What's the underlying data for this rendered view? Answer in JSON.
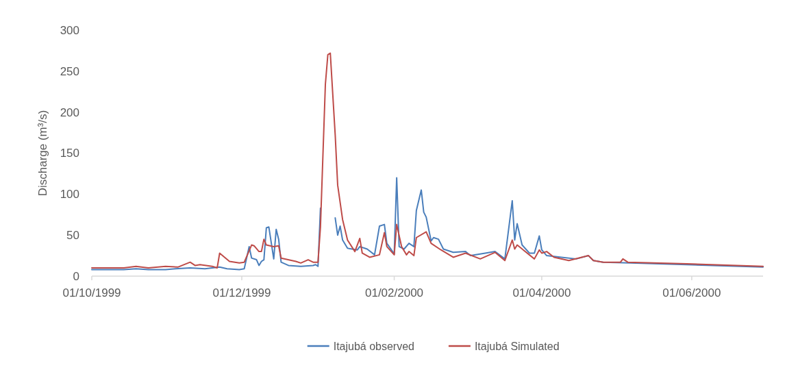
{
  "chart_data": {
    "type": "line",
    "ylabel": "Discharge (m³/s)",
    "xlim": [
      "1999-10-01",
      "2000-06-30"
    ],
    "xticks": [
      {
        "value": "1999-10-01",
        "label": "01/10/1999"
      },
      {
        "value": "1999-12-01",
        "label": "01/12/1999"
      },
      {
        "value": "2000-02-01",
        "label": "01/02/2000"
      },
      {
        "value": "2000-04-01",
        "label": "01/04/2000"
      },
      {
        "value": "2000-06-01",
        "label": "01/06/2000"
      }
    ],
    "ylim": [
      0,
      300
    ],
    "yticks": [
      0,
      50,
      100,
      150,
      200,
      250,
      300
    ],
    "grid": false,
    "legend": "bottom",
    "marker": "none",
    "line_style": "solid",
    "series": [
      {
        "name": "Itajubá observed",
        "color": "#4a7ebb",
        "x": [
          "1999-10-01",
          "1999-10-14",
          "1999-10-19",
          "1999-10-24",
          "1999-10-31",
          "1999-11-04",
          "1999-11-10",
          "1999-11-16",
          "1999-11-22",
          "1999-11-25",
          "1999-11-30",
          "1999-12-02",
          "1999-12-04",
          "1999-12-05",
          "1999-12-07",
          "1999-12-08",
          "1999-12-09",
          "1999-12-10",
          "1999-12-11",
          "1999-12-12",
          "1999-12-14",
          "1999-12-15",
          "1999-12-16",
          "1999-12-17",
          "1999-12-20",
          "1999-12-25",
          "1999-12-30",
          "1999-12-31",
          "2000-01-01",
          "2000-01-02",
          "2000-01-03",
          "2000-01-08",
          "2000-01-09",
          "2000-01-10",
          "2000-01-11",
          "2000-01-13",
          "2000-01-17",
          "2000-01-18",
          "2000-01-21",
          "2000-01-24",
          "2000-01-26",
          "2000-01-28",
          "2000-01-29",
          "2000-02-01",
          "2000-02-02",
          "2000-02-03",
          "2000-02-05",
          "2000-02-07",
          "2000-02-09",
          "2000-02-10",
          "2000-02-12",
          "2000-02-13",
          "2000-02-14",
          "2000-02-16",
          "2000-02-17",
          "2000-02-19",
          "2000-02-21",
          "2000-02-25",
          "2000-03-01",
          "2000-03-03",
          "2000-03-09",
          "2000-03-13",
          "2000-03-17",
          "2000-03-20",
          "2000-03-21",
          "2000-03-22",
          "2000-03-24",
          "2000-03-27",
          "2000-03-29",
          "2000-03-31",
          "2000-04-01",
          "2000-04-03",
          "2000-04-09",
          "2000-04-15",
          "2000-04-20",
          "2000-04-22",
          "2000-04-26",
          "2000-05-07",
          "2000-05-30",
          "2000-06-30"
        ],
        "values": [
          8,
          8,
          9,
          8,
          8,
          9,
          10,
          9,
          11,
          9,
          8,
          9,
          36,
          22,
          20,
          13,
          18,
          20,
          59,
          60,
          21,
          57,
          45,
          17,
          13,
          12,
          13,
          14,
          12,
          83,
          null,
          71,
          50,
          61,
          44,
          34,
          32,
          36,
          33,
          26,
          61,
          63,
          40,
          27,
          120,
          36,
          33,
          40,
          36,
          80,
          105,
          78,
          72,
          43,
          47,
          45,
          33,
          29,
          30,
          25,
          28,
          30,
          21,
          92,
          44,
          64,
          38,
          28,
          28,
          49,
          32,
          25,
          23,
          21,
          25,
          19,
          17,
          16,
          14,
          11
        ]
      },
      {
        "name": "Itajubá Simulated",
        "color": "#be4b48",
        "x": [
          "1999-10-01",
          "1999-10-14",
          "1999-10-19",
          "1999-10-24",
          "1999-10-31",
          "1999-11-05",
          "1999-11-10",
          "1999-11-12",
          "1999-11-14",
          "1999-11-19",
          "1999-11-21",
          "1999-11-22",
          "1999-11-26",
          "1999-11-30",
          "1999-12-02",
          "1999-12-05",
          "1999-12-06",
          "1999-12-08",
          "1999-12-09",
          "1999-12-10",
          "1999-12-11",
          "1999-12-14",
          "1999-12-16",
          "1999-12-17",
          "1999-12-23",
          "1999-12-25",
          "1999-12-28",
          "1999-12-30",
          "2000-01-01",
          "2000-01-02",
          "2000-01-04",
          "2000-01-05",
          "2000-01-06",
          "2000-01-08",
          "2000-01-09",
          "2000-01-11",
          "2000-01-13",
          "2000-01-16",
          "2000-01-18",
          "2000-01-19",
          "2000-01-22",
          "2000-01-26",
          "2000-01-28",
          "2000-01-29",
          "2000-02-01",
          "2000-02-02",
          "2000-02-04",
          "2000-02-06",
          "2000-02-07",
          "2000-02-09",
          "2000-02-10",
          "2000-02-14",
          "2000-02-16",
          "2000-02-20",
          "2000-02-25",
          "2000-03-01",
          "2000-03-07",
          "2000-03-13",
          "2000-03-17",
          "2000-03-20",
          "2000-03-21",
          "2000-03-22",
          "2000-03-29",
          "2000-03-31",
          "2000-04-01",
          "2000-04-03",
          "2000-04-06",
          "2000-04-12",
          "2000-04-20",
          "2000-04-22",
          "2000-04-26",
          "2000-05-03",
          "2000-05-04",
          "2000-05-06",
          "2000-05-30",
          "2000-06-30"
        ],
        "values": [
          10,
          10,
          12,
          10,
          12,
          11,
          17,
          13,
          14,
          12,
          10,
          28,
          18,
          16,
          17,
          38,
          37,
          30,
          30,
          45,
          38,
          36,
          37,
          22,
          18,
          16,
          20,
          17,
          17,
          60,
          234,
          270,
          272,
          172,
          111,
          69,
          44,
          30,
          46,
          28,
          23,
          26,
          53,
          36,
          26,
          63,
          36,
          26,
          30,
          25,
          47,
          54,
          40,
          32,
          23,
          28,
          21,
          29,
          19,
          44,
          33,
          38,
          21,
          32,
          28,
          30,
          23,
          19,
          25,
          19,
          17,
          17,
          21,
          17,
          15,
          12
        ]
      }
    ]
  }
}
